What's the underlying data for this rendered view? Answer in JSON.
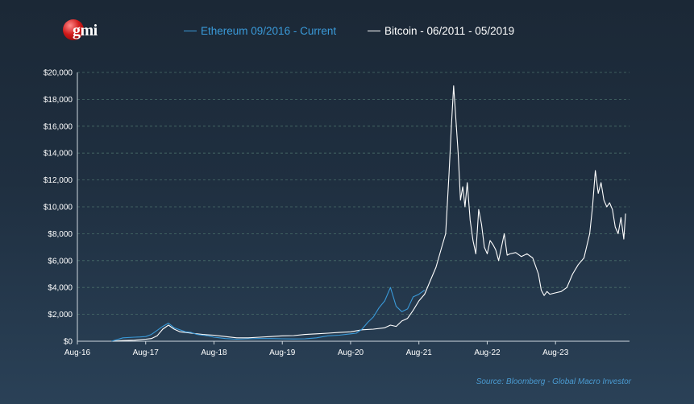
{
  "logo": {
    "text": "gmi"
  },
  "source": "Source: Bloomberg - Global Macro Investor",
  "colors": {
    "ethereum": "#3a9ad9",
    "bitcoin": "#ffffff",
    "grid": "#4a6f6a",
    "axis_text": "#ffffff"
  },
  "chart_data": {
    "type": "line",
    "title": "",
    "xlabel": "",
    "ylabel": "",
    "ylim": [
      0,
      20000
    ],
    "grid": true,
    "legend_position": "top",
    "y_ticks": [
      "$0",
      "$2,000",
      "$4,000",
      "$6,000",
      "$8,000",
      "$10,000",
      "$12,000",
      "$14,000",
      "$16,000",
      "$18,000",
      "$20,000"
    ],
    "x_ticks": [
      "Aug-16",
      "Aug-17",
      "Aug-18",
      "Aug-19",
      "Aug-20",
      "Aug-21",
      "Aug-22",
      "Aug-23"
    ],
    "x_unit_note": "months since Aug-16",
    "series": [
      {
        "name": "Ethereum 09/2016 - Current",
        "color": "#3a9ad9",
        "points": [
          [
            6,
            0
          ],
          [
            8,
            250
          ],
          [
            10,
            300
          ],
          [
            11,
            320
          ],
          [
            12,
            350
          ],
          [
            13,
            500
          ],
          [
            14,
            800
          ],
          [
            15,
            1100
          ],
          [
            16,
            1350
          ],
          [
            17,
            1000
          ],
          [
            18,
            850
          ],
          [
            19,
            700
          ],
          [
            20,
            650
          ],
          [
            21,
            500
          ],
          [
            22,
            450
          ],
          [
            23,
            400
          ],
          [
            24,
            300
          ],
          [
            25,
            250
          ],
          [
            26,
            200
          ],
          [
            28,
            150
          ],
          [
            30,
            180
          ],
          [
            32,
            200
          ],
          [
            34,
            200
          ],
          [
            36,
            180
          ],
          [
            38,
            170
          ],
          [
            40,
            180
          ],
          [
            42,
            250
          ],
          [
            44,
            400
          ],
          [
            46,
            450
          ],
          [
            48,
            550
          ],
          [
            49,
            600
          ],
          [
            50,
            900
          ],
          [
            51,
            1400
          ],
          [
            52,
            1800
          ],
          [
            53,
            2500
          ],
          [
            54,
            3000
          ],
          [
            55,
            4000
          ],
          [
            56,
            2600
          ],
          [
            57,
            2200
          ],
          [
            58,
            2400
          ],
          [
            59,
            3300
          ],
          [
            60,
            3500
          ],
          [
            61,
            3800
          ]
        ]
      },
      {
        "name": "Bitcoin - 06/2011 - 05/2019",
        "color": "#ffffff",
        "points": [
          [
            6,
            0
          ],
          [
            8,
            50
          ],
          [
            10,
            80
          ],
          [
            12,
            150
          ],
          [
            13,
            200
          ],
          [
            14,
            400
          ],
          [
            15,
            900
          ],
          [
            16,
            1200
          ],
          [
            17,
            900
          ],
          [
            18,
            700
          ],
          [
            19,
            650
          ],
          [
            20,
            600
          ],
          [
            22,
            500
          ],
          [
            24,
            450
          ],
          [
            26,
            350
          ],
          [
            28,
            250
          ],
          [
            30,
            250
          ],
          [
            32,
            300
          ],
          [
            34,
            350
          ],
          [
            36,
            400
          ],
          [
            38,
            420
          ],
          [
            40,
            500
          ],
          [
            42,
            550
          ],
          [
            44,
            600
          ],
          [
            46,
            650
          ],
          [
            48,
            700
          ],
          [
            50,
            850
          ],
          [
            52,
            900
          ],
          [
            54,
            1000
          ],
          [
            55,
            1200
          ],
          [
            56,
            1100
          ],
          [
            57,
            1500
          ],
          [
            58,
            1700
          ],
          [
            59,
            2300
          ],
          [
            60,
            3000
          ],
          [
            61,
            3500
          ],
          [
            62,
            4500
          ],
          [
            63,
            5500
          ],
          [
            64,
            7000
          ],
          [
            64.7,
            8000
          ],
          [
            65.3,
            12500
          ],
          [
            65.7,
            16000
          ],
          [
            66.1,
            19000
          ],
          [
            66.5,
            16500
          ],
          [
            66.9,
            14000
          ],
          [
            67.3,
            10500
          ],
          [
            67.7,
            11500
          ],
          [
            68.1,
            10000
          ],
          [
            68.5,
            11800
          ],
          [
            69,
            9000
          ],
          [
            69.5,
            7500
          ],
          [
            70,
            6500
          ],
          [
            70.5,
            9800
          ],
          [
            71,
            8700
          ],
          [
            71.5,
            7000
          ],
          [
            72,
            6500
          ],
          [
            72.5,
            7500
          ],
          [
            73,
            7200
          ],
          [
            73.5,
            6800
          ],
          [
            74,
            6000
          ],
          [
            74.5,
            7000
          ],
          [
            75,
            8000
          ],
          [
            75.5,
            6400
          ],
          [
            76,
            6500
          ],
          [
            77,
            6600
          ],
          [
            78,
            6300
          ],
          [
            79,
            6500
          ],
          [
            80,
            6200
          ],
          [
            81,
            5000
          ],
          [
            81.5,
            3800
          ],
          [
            82,
            3400
          ],
          [
            82.5,
            3700
          ],
          [
            83,
            3500
          ],
          [
            84,
            3600
          ],
          [
            85,
            3700
          ],
          [
            86,
            4000
          ],
          [
            87,
            5000
          ],
          [
            88,
            5700
          ],
          [
            89,
            6200
          ],
          [
            90,
            8000
          ],
          [
            90.5,
            10000
          ],
          [
            91,
            12700
          ],
          [
            91.5,
            11000
          ],
          [
            92,
            11800
          ],
          [
            92.5,
            10500
          ],
          [
            93,
            10000
          ],
          [
            93.5,
            10300
          ],
          [
            94,
            9800
          ],
          [
            94.5,
            8500
          ],
          [
            95,
            8000
          ],
          [
            95.5,
            9200
          ],
          [
            96,
            7600
          ],
          [
            96.3,
            9500
          ]
        ]
      }
    ]
  }
}
